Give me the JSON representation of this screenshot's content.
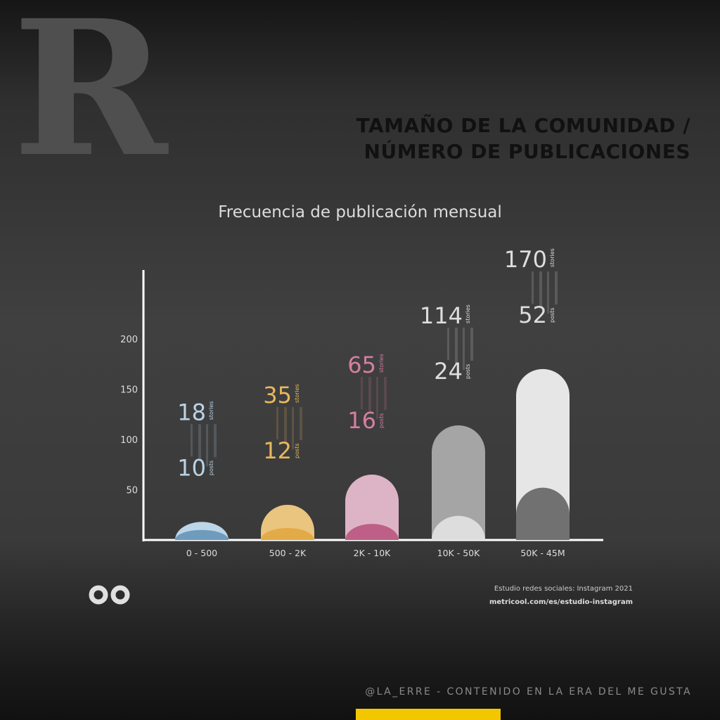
{
  "brand": {
    "logo_letter": "R"
  },
  "header": {
    "title_line1": "TAMAÑO DE LA COMUNIDAD /",
    "title_line2": "NÚMERO DE PUBLICACIONES"
  },
  "footer": {
    "source_line1": "Estudio redes sociales: Instagram 2021",
    "source_line2": "metricool.com/es/estudio-instagram",
    "credit": "@LA_ERRE - CONTENIDO EN LA ERA DEL ME GUSTA",
    "icon": "infinity-icon"
  },
  "colors": {
    "background": "#3d3d3d",
    "accent_yellow": "#f2c700"
  },
  "chart_data": {
    "type": "bar",
    "title": "Frecuencia de publicación mensual",
    "xlabel": "",
    "ylabel": "",
    "yticks": [
      50,
      100,
      150,
      200
    ],
    "ylim": [
      0,
      280
    ],
    "categories": [
      "0 - 500",
      "500 - 2K",
      "2K - 10K",
      "10K - 50K",
      "50K - 45M"
    ],
    "series": [
      {
        "name": "stories",
        "values": [
          18,
          35,
          65,
          114,
          170
        ]
      },
      {
        "name": "posts",
        "values": [
          10,
          12,
          16,
          24,
          52
        ]
      }
    ],
    "colors_stories": [
      "#bcd6e8",
      "#eac57f",
      "#ddb4c5",
      "#a5a5a5",
      "#e6e6e6"
    ],
    "colors_posts": [
      "#6f9bbd",
      "#e2ab47",
      "#bd5f86",
      "#dddddd",
      "#717171"
    ],
    "label_colors": [
      "#b9d3e6",
      "#e8b85c",
      "#d57ea1",
      "#dddddd",
      "#dddddd"
    ],
    "legend_stories": "stories",
    "legend_posts": "posts",
    "grid": false
  }
}
